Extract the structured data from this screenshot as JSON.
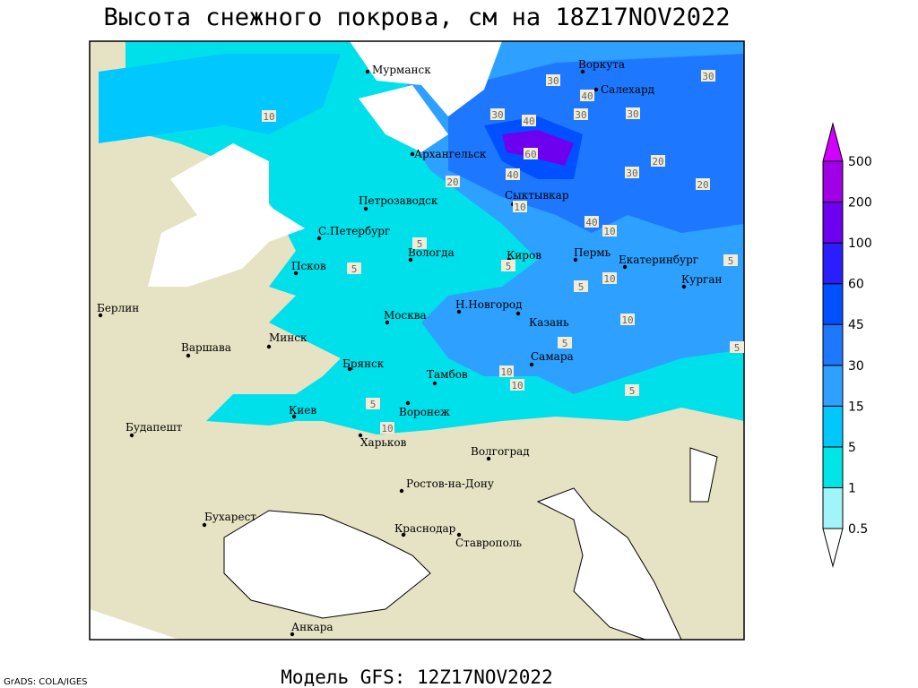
{
  "title": "Высота снежного покрова, см на 18Z17NOV2022",
  "footer": "Модель GFS: 12Z17NOV2022",
  "credit": "GrADS: COLA/IGES",
  "cities": [
    "Мурманск",
    "Воркута",
    "Салехард",
    "Архангельск",
    "Сыктывкар",
    "Петрозаводск",
    "С.Петербург",
    "Вологда",
    "Киров",
    "Пермь",
    "Екатеринбург",
    "Курган",
    "Псков",
    "Н.Новгород",
    "Казань",
    "Москва",
    "Берлин",
    "Варшава",
    "Минск",
    "Самара",
    "Брянск",
    "Тамбов",
    "Воронеж",
    "Киев",
    "Харьков",
    "Будапешт",
    "Волгоград",
    "Ростов-на-Дону",
    "Бухарест",
    "Краснодар",
    "Ставрополь",
    "Анкара"
  ],
  "contour_labels": [
    10,
    30,
    40,
    30,
    60,
    40,
    40,
    20,
    30,
    20,
    20,
    10,
    40,
    10,
    5,
    5,
    5,
    5,
    10,
    5,
    10,
    5,
    5,
    10,
    10,
    5,
    5,
    10,
    30,
    30,
    30
  ],
  "colorbar": {
    "levels": [
      0.5,
      1,
      5,
      15,
      30,
      45,
      60,
      100,
      200,
      500
    ],
    "colors": [
      "#ffffff",
      "#a0f4fa",
      "#00e6e6",
      "#00c8ff",
      "#2ea0ff",
      "#1e78ff",
      "#0050ff",
      "#2a1eff",
      "#6e00f0",
      "#a000e6",
      "#d200ff"
    ]
  }
}
